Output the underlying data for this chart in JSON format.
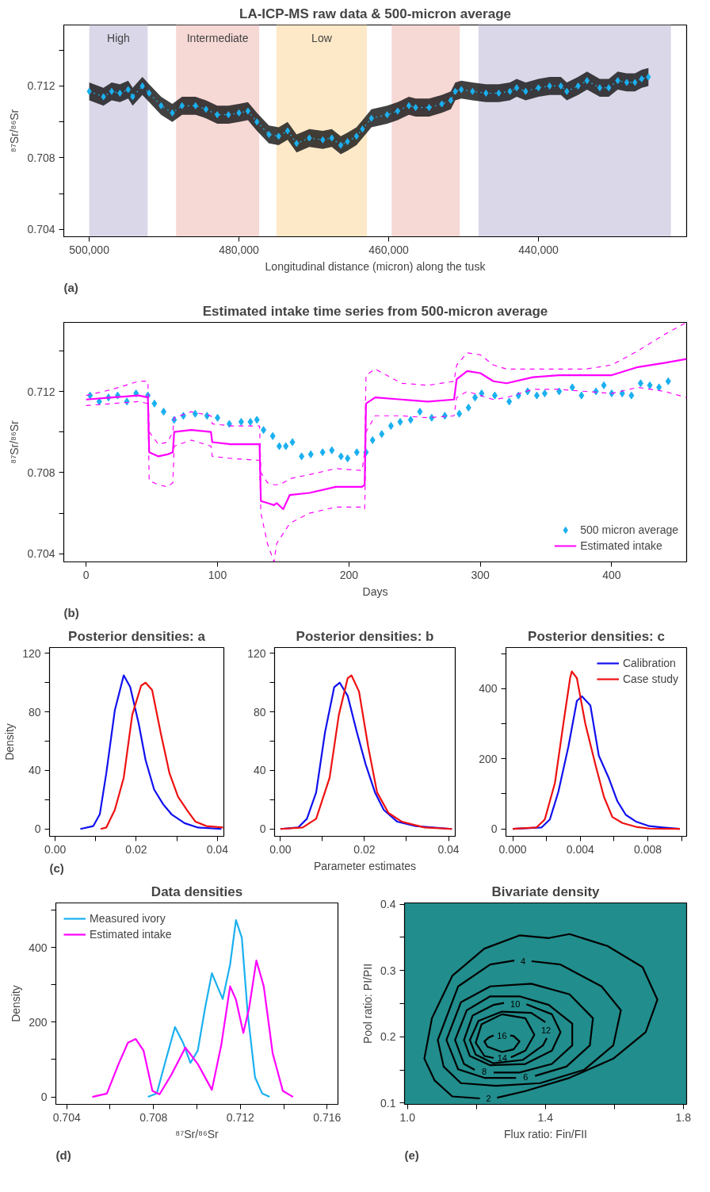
{
  "chart_data": [
    {
      "type": "line",
      "title": "LA-ICP-MS raw data & 500-micron average",
      "xlabel": "Longitudinal distance (micron) along the tusk",
      "ylabel": "⁸⁷Sr/⁸⁶Sr",
      "annotations": [
        "(a)"
      ],
      "xlim": [
        503400,
        420200
      ],
      "ylim": [
        0.7036,
        0.7154
      ],
      "xticks": [
        {
          "value": 500000,
          "label": "500,000"
        },
        {
          "value": 480000,
          "label": "480,000"
        },
        {
          "value": 460000,
          "label": "460,000"
        },
        {
          "value": 440000,
          "label": "440,000"
        }
      ],
      "yticks": [
        0.704,
        {
          "value": 0.706,
          "label": null
        },
        0.708,
        {
          "value": 0.71,
          "label": null
        },
        0.712,
        {
          "value": 0.714,
          "label": null
        }
      ],
      "bands": [
        {
          "axis": "x",
          "from": 500000,
          "to": 492200,
          "label": "High",
          "color": "#d9d7e8"
        },
        {
          "axis": "x",
          "from": 488400,
          "to": 477300,
          "label": "Intermediate",
          "color": "#f6d8d5"
        },
        {
          "axis": "x",
          "from": 475000,
          "to": 462900,
          "label": "Low",
          "color": "#fde9c8"
        },
        {
          "axis": "x",
          "from": 459600,
          "to": 450500,
          "color": "#f6d8d5"
        },
        {
          "axis": "x",
          "from": 448000,
          "to": 422300,
          "color": "#d9d7e8"
        }
      ],
      "series": [
        {
          "color": "#1ab0f0",
          "marker": "diamond",
          "line_style": "dotted",
          "x": [
            500000,
            498100,
            497000,
            495900,
            494800,
            494200,
            492900,
            492000,
            490400,
            488900,
            487600,
            485800,
            484400,
            482900,
            481400,
            480000,
            478800,
            477600,
            476000,
            474700,
            473500,
            472300,
            470600,
            468800,
            467600,
            466400,
            465500,
            464300,
            463500,
            462300,
            460200,
            458800,
            457300,
            456400,
            454600,
            452900,
            451700,
            451100,
            450300,
            448800,
            447000,
            445300,
            443800,
            442900,
            441700,
            440000,
            438500,
            437000,
            436200,
            434700,
            433500,
            431800,
            430600,
            429400,
            428200,
            427100,
            426200,
            425300
          ],
          "values": [
            0.7117,
            0.7114,
            0.7117,
            0.7116,
            0.7118,
            0.7114,
            0.712,
            0.7116,
            0.7109,
            0.7105,
            0.7109,
            0.7109,
            0.7107,
            0.7104,
            0.7104,
            0.7105,
            0.7106,
            0.71,
            0.7093,
            0.7092,
            0.7095,
            0.7088,
            0.7091,
            0.709,
            0.7091,
            0.7087,
            0.7089,
            0.7092,
            0.7096,
            0.7102,
            0.7104,
            0.7106,
            0.7109,
            0.7108,
            0.7108,
            0.711,
            0.7112,
            0.7117,
            0.7118,
            0.7117,
            0.7116,
            0.7116,
            0.7117,
            0.7119,
            0.7117,
            0.7119,
            0.712,
            0.712,
            0.7117,
            0.712,
            0.7123,
            0.7119,
            0.7119,
            0.7123,
            0.7122,
            0.7122,
            0.7124,
            0.7125
          ],
          "lower": [
            0.7112,
            0.7109,
            0.7112,
            0.7111,
            0.7113,
            0.7109,
            0.7115,
            0.7111,
            0.7104,
            0.71,
            0.7104,
            0.7104,
            0.7102,
            0.7099,
            0.7099,
            0.71,
            0.7101,
            0.7095,
            0.7088,
            0.7087,
            0.709,
            0.7083,
            0.7086,
            0.7085,
            0.7086,
            0.7082,
            0.7084,
            0.7087,
            0.7091,
            0.7097,
            0.7099,
            0.7101,
            0.7104,
            0.7103,
            0.7103,
            0.7105,
            0.7107,
            0.7112,
            0.7113,
            0.7112,
            0.7111,
            0.7111,
            0.7112,
            0.7114,
            0.7112,
            0.7114,
            0.7115,
            0.7115,
            0.7112,
            0.7115,
            0.7118,
            0.7114,
            0.7114,
            0.7118,
            0.7117,
            0.7117,
            0.7119,
            0.712
          ],
          "upper": [
            0.7122,
            0.7119,
            0.7122,
            0.7121,
            0.7123,
            0.7119,
            0.7125,
            0.7121,
            0.7114,
            0.711,
            0.7114,
            0.7114,
            0.7112,
            0.7109,
            0.7109,
            0.711,
            0.7111,
            0.7105,
            0.7098,
            0.7097,
            0.71,
            0.7093,
            0.7096,
            0.7095,
            0.7096,
            0.7092,
            0.7094,
            0.7097,
            0.7101,
            0.7107,
            0.7109,
            0.7111,
            0.7114,
            0.7113,
            0.7113,
            0.7115,
            0.7117,
            0.7122,
            0.7123,
            0.7122,
            0.7121,
            0.7121,
            0.7122,
            0.7124,
            0.7122,
            0.7124,
            0.7125,
            0.7125,
            0.7122,
            0.7125,
            0.7128,
            0.7124,
            0.7124,
            0.7128,
            0.7127,
            0.7127,
            0.7129,
            0.713
          ]
        }
      ]
    },
    {
      "type": "line",
      "title": "Estimated intake time series from 500-micron average",
      "xlabel": "Days",
      "ylabel": "⁸⁷Sr/⁸⁶Sr",
      "annotations": [
        "(b)"
      ],
      "legend": "bottom right",
      "xlim": [
        -17,
        457
      ],
      "ylim": [
        0.7036,
        0.7154
      ],
      "xticks": [
        0,
        100,
        200,
        300,
        400
      ],
      "yticks": [
        0.704,
        {
          "value": 0.706,
          "label": null
        },
        0.708,
        {
          "value": 0.71,
          "label": null
        },
        0.712,
        {
          "value": 0.714,
          "label": null
        }
      ],
      "series": [
        {
          "type": "scatter",
          "marker": "diamond",
          "name": "500 micron average",
          "color": "#1ab0f0",
          "x": [
            3,
            10,
            17,
            24,
            31,
            38,
            47,
            52,
            59,
            67,
            74,
            83,
            92,
            100,
            109,
            118,
            125,
            130,
            135,
            142,
            147,
            152,
            157,
            164,
            171,
            180,
            187,
            194,
            199,
            206,
            213,
            218,
            225,
            232,
            239,
            247,
            254,
            263,
            273,
            284,
            291,
            296,
            301,
            311,
            322,
            329,
            336,
            343,
            349,
            360,
            370,
            377,
            388,
            394,
            400,
            408,
            415,
            422,
            429,
            436,
            443
          ],
          "values": [
            0.7118,
            0.7115,
            0.7117,
            0.7118,
            0.7115,
            0.7119,
            0.7118,
            0.7114,
            0.711,
            0.7106,
            0.7108,
            0.7109,
            0.7108,
            0.7107,
            0.7104,
            0.7105,
            0.7105,
            0.7106,
            0.7101,
            0.7098,
            0.7093,
            0.7093,
            0.7095,
            0.7088,
            0.7089,
            0.709,
            0.7091,
            0.7088,
            0.7087,
            0.709,
            0.709,
            0.7096,
            0.7099,
            0.7103,
            0.7105,
            0.7106,
            0.711,
            0.7107,
            0.7108,
            0.7109,
            0.7112,
            0.7117,
            0.7119,
            0.7118,
            0.7115,
            0.7118,
            0.712,
            0.7118,
            0.7119,
            0.712,
            0.7122,
            0.7118,
            0.712,
            0.7123,
            0.7119,
            0.7119,
            0.7118,
            0.7124,
            0.7123,
            0.7122,
            0.7125
          ]
        },
        {
          "type": "line",
          "name": "Estimated intake",
          "color": "#ff00ff",
          "x": [
            0,
            20,
            40,
            47,
            48,
            55,
            62,
            66,
            67,
            80,
            95,
            96,
            110,
            132,
            133,
            138,
            143,
            145,
            150,
            155,
            170,
            190,
            210,
            212,
            213,
            220,
            240,
            260,
            280,
            282,
            290,
            300,
            310,
            320,
            340,
            360,
            380,
            400,
            420,
            440,
            457
          ],
          "values": [
            0.7116,
            0.7117,
            0.7118,
            0.7117,
            0.709,
            0.7088,
            0.7089,
            0.709,
            0.71,
            0.7101,
            0.71,
            0.7095,
            0.7094,
            0.7094,
            0.7066,
            0.7065,
            0.7064,
            0.7065,
            0.7062,
            0.7069,
            0.707,
            0.7073,
            0.7073,
            0.7074,
            0.7114,
            0.7117,
            0.7116,
            0.7115,
            0.7116,
            0.7126,
            0.713,
            0.7129,
            0.7125,
            0.7124,
            0.7127,
            0.7128,
            0.7128,
            0.7128,
            0.7132,
            0.7134,
            0.7136
          ]
        },
        {
          "type": "line",
          "line_style": "dashed",
          "color": "#ff00ff",
          "x": [
            0,
            20,
            40,
            47,
            48,
            55,
            62,
            66,
            67,
            80,
            95,
            96,
            110,
            132,
            133,
            138,
            143,
            145,
            150,
            155,
            170,
            190,
            210,
            212,
            213,
            220,
            240,
            260,
            280,
            282,
            290,
            300,
            310,
            320,
            340,
            360,
            380,
            400,
            420,
            440,
            457
          ],
          "values": [
            0.7113,
            0.7114,
            0.7115,
            0.7114,
            0.7076,
            0.7074,
            0.7073,
            0.7075,
            0.7093,
            0.7096,
            0.7093,
            0.7088,
            0.7087,
            0.7086,
            0.706,
            0.7045,
            0.7036,
            0.7045,
            0.705,
            0.7055,
            0.706,
            0.7063,
            0.7063,
            0.7062,
            0.71,
            0.7108,
            0.7108,
            0.7107,
            0.7108,
            0.7117,
            0.712,
            0.7118,
            0.7116,
            0.7117,
            0.7121,
            0.7121,
            0.712,
            0.7119,
            0.7122,
            0.712,
            0.7117
          ]
        },
        {
          "type": "line",
          "line_style": "dashed",
          "color": "#ff00ff",
          "x": [
            0,
            20,
            40,
            47,
            48,
            55,
            62,
            66,
            67,
            80,
            95,
            96,
            110,
            132,
            133,
            138,
            143,
            145,
            150,
            155,
            170,
            190,
            210,
            212,
            213,
            220,
            240,
            260,
            280,
            282,
            290,
            300,
            310,
            320,
            340,
            360,
            380,
            400,
            420,
            440,
            457
          ],
          "values": [
            0.7118,
            0.7121,
            0.7125,
            0.7125,
            0.71,
            0.7094,
            0.7095,
            0.71,
            0.7107,
            0.711,
            0.7108,
            0.7104,
            0.7103,
            0.7103,
            0.708,
            0.7075,
            0.7074,
            0.7074,
            0.7075,
            0.7077,
            0.7079,
            0.7082,
            0.7081,
            0.709,
            0.7128,
            0.7131,
            0.7124,
            0.7123,
            0.7125,
            0.7133,
            0.7139,
            0.7138,
            0.7133,
            0.7131,
            0.7131,
            0.7131,
            0.7131,
            0.7133,
            0.714,
            0.7148,
            0.7154
          ]
        }
      ]
    },
    {
      "type": "line",
      "title": "Posterior densities: a",
      "ylabel": "Density",
      "annotations": [
        "(c)"
      ],
      "xlim": [
        -0.0014,
        0.0416
      ],
      "ylim": [
        -5,
        124
      ],
      "xticks": [
        {
          "value": 0,
          "label": "0.00"
        },
        {
          "value": 0.01,
          "label": null
        },
        0.02,
        {
          "value": 0.03,
          "label": null
        },
        0.04
      ],
      "yticks": [
        0,
        {
          "value": 20,
          "label": null
        },
        40,
        {
          "value": 60,
          "label": null
        },
        80,
        {
          "value": 100,
          "label": null
        },
        120
      ],
      "series": [
        {
          "color": "#1010ee",
          "x": [
            0.0062,
            0.0094,
            0.011,
            0.0126,
            0.0147,
            0.0169,
            0.0185,
            0.0206,
            0.0223,
            0.0244,
            0.0266,
            0.0287,
            0.0319,
            0.0352,
            0.041
          ],
          "values": [
            0,
            2,
            10,
            38,
            81,
            105,
            97,
            72,
            47,
            27,
            17,
            10,
            4,
            1,
            0
          ]
        },
        {
          "color": "#ee1111",
          "x": [
            0.0112,
            0.0126,
            0.0147,
            0.0169,
            0.019,
            0.0212,
            0.0223,
            0.0239,
            0.026,
            0.0282,
            0.0303,
            0.0325,
            0.0346,
            0.0373,
            0.0414
          ],
          "values": [
            0,
            1,
            13,
            35,
            78,
            98,
            100,
            95,
            66,
            38,
            22,
            13,
            5,
            2,
            1
          ]
        }
      ]
    },
    {
      "type": "line",
      "title": "Posterior densities: b",
      "xlabel": "Parameter estimates",
      "xlim": [
        -0.0014,
        0.0416
      ],
      "ylim": [
        -5,
        124
      ],
      "xticks": [
        {
          "value": 0,
          "label": "0.00"
        },
        {
          "value": 0.01,
          "label": null
        },
        0.02,
        {
          "value": 0.03,
          "label": null
        },
        0.04
      ],
      "yticks": [
        0,
        {
          "value": 20,
          "label": null
        },
        40,
        {
          "value": 60,
          "label": null
        },
        80,
        {
          "value": 100,
          "label": null
        },
        120
      ],
      "series": [
        {
          "color": "#1010ee",
          "x": [
            0,
            0.0042,
            0.0063,
            0.0085,
            0.0106,
            0.0128,
            0.0141,
            0.016,
            0.0182,
            0.0203,
            0.0225,
            0.0246,
            0.0278,
            0.0322,
            0.0408
          ],
          "values": [
            0,
            1,
            7,
            25,
            66,
            97,
            100,
            91,
            66,
            44,
            25,
            13,
            5,
            2,
            0
          ]
        },
        {
          "color": "#ee1111",
          "x": [
            0,
            0.0053,
            0.0085,
            0.0117,
            0.0139,
            0.016,
            0.0169,
            0.0187,
            0.0209,
            0.023,
            0.0257,
            0.0289,
            0.0343,
            0.0408
          ],
          "values": [
            0,
            1,
            7,
            35,
            78,
            103,
            105,
            94,
            56,
            25,
            11,
            5,
            1,
            0
          ]
        }
      ]
    },
    {
      "type": "line",
      "title": "Posterior densities: c",
      "legend": "top right",
      "xlim": [
        -0.0004,
        0.0103
      ],
      "ylim": [
        -21,
        517
      ],
      "xticks": [
        {
          "value": 0,
          "label": "0.000"
        },
        {
          "value": 0.002,
          "label": null
        },
        0.004,
        {
          "value": 0.006,
          "label": null
        },
        0.008,
        {
          "value": 0.01,
          "label": null
        }
      ],
      "yticks": [
        0,
        {
          "value": 100,
          "label": null
        },
        200,
        {
          "value": 300,
          "label": null
        },
        400,
        {
          "value": 500,
          "label": null
        }
      ],
      "series": [
        {
          "name": "Calibration",
          "color": "#1010ee",
          "x": [
            0,
            0.0017,
            0.0022,
            0.0027,
            0.0033,
            0.0038,
            0.0041,
            0.0046,
            0.0051,
            0.0057,
            0.0062,
            0.0067,
            0.0073,
            0.0081,
            0.0089,
            0.0099
          ],
          "values": [
            0,
            4,
            27,
            105,
            235,
            365,
            378,
            352,
            209,
            144,
            79,
            40,
            21,
            8,
            4,
            0
          ]
        },
        {
          "name": "Case study",
          "color": "#ee1111",
          "x": [
            0,
            0.0014,
            0.0019,
            0.0025,
            0.003,
            0.0034,
            0.0035,
            0.0038,
            0.0043,
            0.0049,
            0.0054,
            0.0059,
            0.0065,
            0.0073,
            0.0081,
            0.0099
          ],
          "values": [
            0,
            4,
            27,
            131,
            300,
            430,
            449,
            430,
            300,
            183,
            92,
            34,
            17,
            6,
            1,
            0
          ]
        }
      ]
    },
    {
      "type": "line",
      "title": "Data densities",
      "xlabel": "⁸⁷Sr/⁸⁶Sr",
      "ylabel": "Density",
      "annotations": [
        "(d)"
      ],
      "legend": "top left",
      "xlim": [
        0.7035,
        0.7165
      ],
      "ylim": [
        -20,
        519
      ],
      "xticks": [
        0.704,
        {
          "value": 0.706,
          "label": null
        },
        0.708,
        {
          "value": 0.71,
          "label": null
        },
        0.712,
        {
          "value": 0.714,
          "label": null
        },
        0.716
      ],
      "yticks": [
        0,
        {
          "value": 100,
          "label": null
        },
        200,
        {
          "value": 300,
          "label": null
        },
        400,
        {
          "value": 500,
          "label": null
        }
      ],
      "series": [
        {
          "name": "Measured ivory",
          "color": "#1ab0f0",
          "x": [
            0.70774,
            0.70815,
            0.70855,
            0.70899,
            0.70936,
            0.7097,
            0.71004,
            0.71038,
            0.71069,
            0.71099,
            0.71119,
            0.71153,
            0.7118,
            0.71207,
            0.71234,
            0.71268,
            0.71301,
            0.71335
          ],
          "values": [
            0,
            9,
            95,
            187,
            145,
            91,
            124,
            239,
            331,
            289,
            262,
            354,
            473,
            426,
            224,
            52,
            9,
            0
          ]
        },
        {
          "name": "Estimated intake",
          "color": "#ff00ff",
          "x": [
            0.70518,
            0.70585,
            0.70639,
            0.70682,
            0.70718,
            0.70754,
            0.70795,
            0.70828,
            0.70882,
            0.70947,
            0.71004,
            0.71069,
            0.71112,
            0.71153,
            0.7118,
            0.71214,
            0.71241,
            0.71274,
            0.71308,
            0.71349,
            0.71396,
            0.71443
          ],
          "values": [
            0,
            9,
            88,
            145,
            155,
            124,
            16,
            7,
            59,
            132,
            88,
            19,
            138,
            296,
            260,
            171,
            239,
            365,
            296,
            117,
            16,
            0
          ]
        }
      ]
    },
    {
      "type": "line",
      "title": "Bivariate density",
      "xlabel": "Flux ratio: Fin/FII",
      "ylabel": "Pool ratio: PI/PII",
      "annotations": [
        "(e)"
      ],
      "xlim": [
        0.9915,
        1.8097
      ],
      "ylim": [
        0.098,
        0.402
      ],
      "xticks": [
        {
          "value": 1.0,
          "label": "1.0"
        },
        {
          "value": 1.2,
          "label": null
        },
        1.4,
        {
          "value": 1.6,
          "label": null
        },
        1.8
      ],
      "yticks": [
        0.1,
        {
          "value": 0.15,
          "label": null
        },
        0.2,
        {
          "value": 0.25,
          "label": null
        },
        0.3,
        {
          "value": 0.35,
          "label": null
        },
        0.4
      ],
      "series": [
        {
          "name": "2",
          "color": "#000000",
          "x": [
            1.21,
            1.13,
            1.079,
            1.049,
            1.071,
            1.13,
            1.223,
            1.325,
            1.41,
            1.47,
            1.58,
            1.682,
            1.725,
            1.691,
            1.597,
            1.47,
            1.342,
            1.26
          ],
          "values": [
            0.107,
            0.11,
            0.134,
            0.167,
            0.228,
            0.292,
            0.333,
            0.353,
            0.349,
            0.355,
            0.337,
            0.305,
            0.256,
            0.207,
            0.167,
            0.138,
            0.118,
            0.108
          ]
        },
        {
          "name": "4",
          "color": "#000000",
          "x": [
            1.36,
            1.444,
            1.563,
            1.619,
            1.597,
            1.512,
            1.385,
            1.257,
            1.155,
            1.105,
            1.088,
            1.147,
            1.24,
            1.31
          ],
          "values": [
            0.314,
            0.309,
            0.276,
            0.24,
            0.187,
            0.15,
            0.13,
            0.126,
            0.13,
            0.155,
            0.195,
            0.276,
            0.309,
            0.315
          ]
        },
        {
          "name": "6",
          "color": "#000000",
          "x": [
            1.315,
            1.223,
            1.147,
            1.113,
            1.155,
            1.24,
            1.359,
            1.47,
            1.538,
            1.529,
            1.461,
            1.37
          ],
          "values": [
            0.138,
            0.138,
            0.151,
            0.195,
            0.252,
            0.276,
            0.28,
            0.264,
            0.228,
            0.187,
            0.155,
            0.141
          ]
        },
        {
          "name": "8",
          "color": "#000000",
          "x": [
            1.195,
            1.164,
            1.138,
            1.172,
            1.24,
            1.325,
            1.41,
            1.478,
            1.478,
            1.419,
            1.325,
            1.25
          ],
          "values": [
            0.15,
            0.159,
            0.195,
            0.24,
            0.261,
            0.261,
            0.248,
            0.22,
            0.187,
            0.159,
            0.146,
            0.146
          ]
        },
        {
          "name": "10",
          "color": "#000000",
          "x": [
            1.345,
            1.419,
            1.444,
            1.419,
            1.342,
            1.24,
            1.181,
            1.164,
            1.189,
            1.249,
            1.28
          ],
          "values": [
            0.249,
            0.234,
            0.207,
            0.179,
            0.159,
            0.157,
            0.171,
            0.195,
            0.232,
            0.248,
            0.251
          ]
        },
        {
          "name": "12",
          "color": "#000000",
          "x": [
            1.404,
            1.393,
            1.334,
            1.249,
            1.198,
            1.181,
            1.206,
            1.274,
            1.359,
            1.4
          ],
          "values": [
            0.198,
            0.187,
            0.165,
            0.16,
            0.173,
            0.195,
            0.224,
            0.238,
            0.236,
            0.222
          ]
        },
        {
          "name": "14",
          "color": "#000000",
          "x": [
            1.25,
            1.223,
            1.198,
            1.215,
            1.274,
            1.342,
            1.368,
            1.342,
            1.3
          ],
          "values": [
            0.168,
            0.171,
            0.191,
            0.219,
            0.234,
            0.228,
            0.203,
            0.179,
            0.169
          ]
        },
        {
          "name": "16",
          "color": "#000000",
          "x": [
            1.25,
            1.236,
            1.223,
            1.232,
            1.274,
            1.308,
            1.325,
            1.308,
            1.298
          ],
          "values": [
            0.202,
            0.199,
            0.193,
            0.185,
            0.177,
            0.181,
            0.193,
            0.201,
            0.202
          ]
        }
      ]
    }
  ]
}
